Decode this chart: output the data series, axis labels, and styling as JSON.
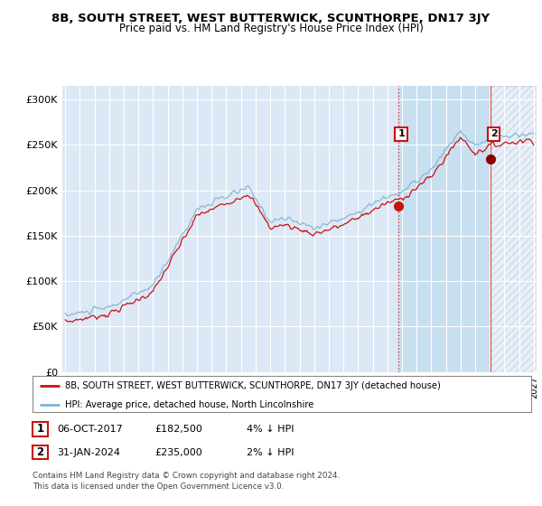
{
  "title": "8B, SOUTH STREET, WEST BUTTERWICK, SCUNTHORPE, DN17 3JY",
  "subtitle": "Price paid vs. HM Land Registry's House Price Index (HPI)",
  "ylabel_ticks": [
    "£0",
    "£50K",
    "£100K",
    "£150K",
    "£200K",
    "£250K",
    "£300K"
  ],
  "ytick_vals": [
    0,
    50000,
    100000,
    150000,
    200000,
    250000,
    300000
  ],
  "ylim": [
    0,
    315000
  ],
  "hpi_color": "#7fb3d3",
  "price_color": "#cc1111",
  "marker1_price": 182500,
  "marker2_price": 235000,
  "legend_line1": "8B, SOUTH STREET, WEST BUTTERWICK, SCUNTHORPE, DN17 3JY (detached house)",
  "legend_line2": "HPI: Average price, detached house, North Lincolnshire",
  "table_row1": [
    "1",
    "06-OCT-2017",
    "£182,500",
    "4% ↓ HPI"
  ],
  "table_row2": [
    "2",
    "31-JAN-2024",
    "£235,000",
    "2% ↓ HPI"
  ],
  "footnote": "Contains HM Land Registry data © Crown copyright and database right 2024.\nThis data is licensed under the Open Government Licence v3.0.",
  "bg_color": "#ffffff",
  "plot_bg_color": "#dce8f5",
  "shaded_bg_color": "#c8dff0",
  "grid_color": "#ffffff",
  "sale1_year": 2017.75,
  "sale2_year": 2024.08
}
